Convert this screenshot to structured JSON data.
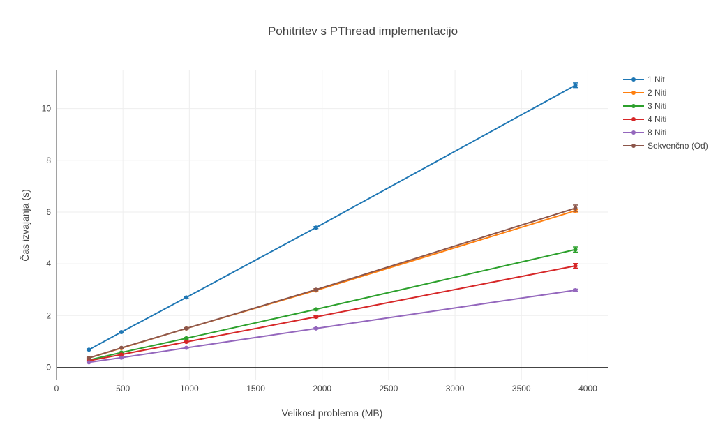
{
  "chart_data": {
    "type": "line",
    "title": "Pohitritev s PThread implementacijo",
    "xlabel": "Velikost problema (MB)",
    "ylabel": "Čas izvajanja (s)",
    "xlim": [
      0,
      4150
    ],
    "ylim": [
      -0.5,
      11.5
    ],
    "x_ticks": [
      0,
      500,
      1000,
      1500,
      2000,
      2500,
      3000,
      3500,
      4000
    ],
    "y_ticks": [
      0,
      2,
      4,
      6,
      8,
      10
    ],
    "grid": true,
    "legend_position": "top-right",
    "x": [
      244,
      488,
      977,
      1953,
      3906
    ],
    "series": [
      {
        "name": "1 Nit",
        "color": "#1f77b4",
        "values": [
          0.68,
          1.36,
          2.7,
          5.4,
          10.9
        ],
        "errors": [
          0.03,
          0.03,
          0.03,
          0.04,
          0.09
        ]
      },
      {
        "name": "2 Niti",
        "color": "#ff7f0e",
        "values": [
          0.36,
          0.74,
          1.5,
          2.97,
          6.05
        ],
        "errors": [
          0.02,
          0.02,
          0.03,
          0.04,
          0.05
        ]
      },
      {
        "name": "3 Niti",
        "color": "#2ca02c",
        "values": [
          0.28,
          0.57,
          1.12,
          2.24,
          4.55
        ],
        "errors": [
          0.02,
          0.02,
          0.03,
          0.04,
          0.1
        ]
      },
      {
        "name": "4 Niti",
        "color": "#d62728",
        "values": [
          0.25,
          0.49,
          0.98,
          1.95,
          3.92
        ],
        "errors": [
          0.02,
          0.02,
          0.03,
          0.04,
          0.09
        ]
      },
      {
        "name": "8 Niti",
        "color": "#9467bd",
        "values": [
          0.19,
          0.37,
          0.75,
          1.5,
          2.98
        ],
        "errors": [
          0.02,
          0.02,
          0.02,
          0.03,
          0.04
        ]
      },
      {
        "name": "Sekvenčno (Od)",
        "color": "#8c564b",
        "values": [
          0.36,
          0.75,
          1.5,
          3.0,
          6.15
        ],
        "errors": [
          0.02,
          0.02,
          0.03,
          0.04,
          0.12
        ]
      }
    ]
  }
}
